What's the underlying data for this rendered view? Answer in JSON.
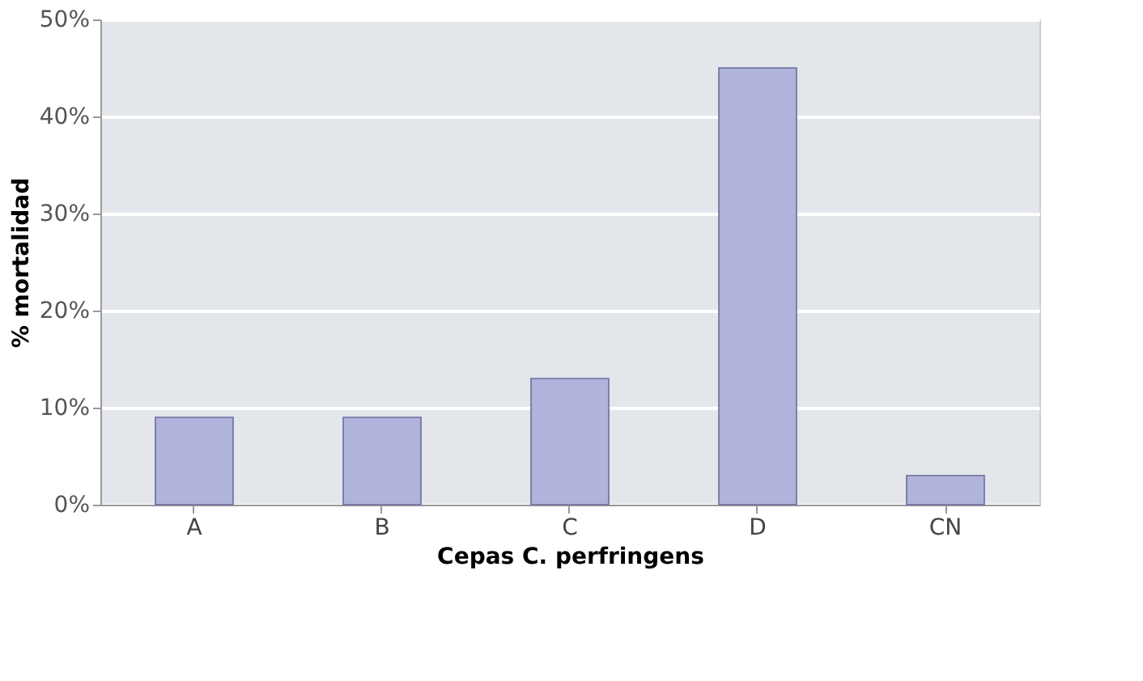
{
  "chart_data": {
    "type": "bar",
    "xlabel": "Cepas C. perfringens",
    "ylabel": "% mortalidad",
    "categories": [
      "A",
      "B",
      "C",
      "D",
      "CN"
    ],
    "values": [
      9,
      9,
      13,
      45,
      3
    ],
    "color": "#b0b4dc",
    "ylim": [
      0,
      50
    ],
    "yticks": [
      {
        "value": 0,
        "label": "0%"
      },
      {
        "value": 10,
        "label": "10%"
      },
      {
        "value": 20,
        "label": "20%"
      },
      {
        "value": 30,
        "label": "30%"
      },
      {
        "value": 40,
        "label": "40%"
      },
      {
        "value": 50,
        "label": "50%"
      }
    ],
    "grid": "y"
  }
}
